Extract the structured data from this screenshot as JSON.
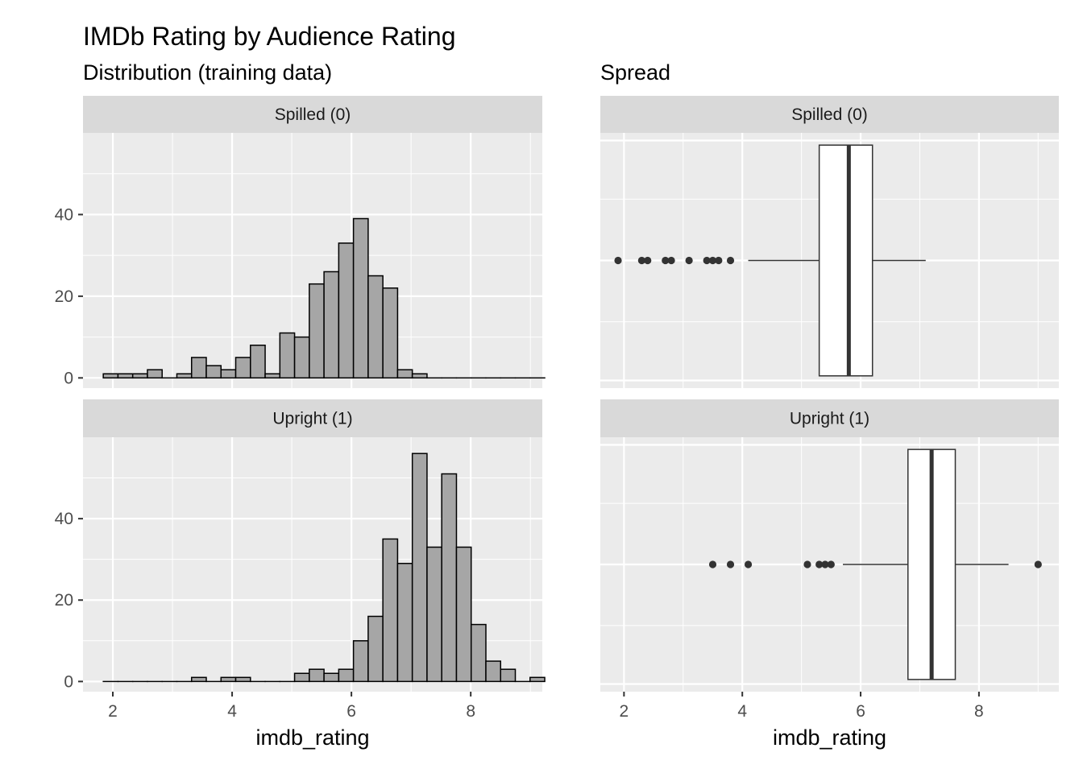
{
  "title": "IMDb Rating by Audience Rating",
  "chart_data": [
    {
      "type": "bar",
      "subtitle": "Distribution (training data)",
      "xlabel": "imdb_rating",
      "ylabel": "",
      "xlim": [
        1.5,
        9.2
      ],
      "ylim": [
        -2.5,
        60
      ],
      "x_ticks": [
        2,
        4,
        6,
        8
      ],
      "y_ticks": [
        0,
        20,
        40
      ],
      "bin_start": 1.84,
      "bin_width": 0.2467,
      "panels": [
        {
          "label": "Spilled (0)",
          "counts": [
            1,
            1,
            1,
            2,
            0,
            1,
            5,
            3,
            2,
            5,
            8,
            1,
            11,
            10,
            23,
            26,
            33,
            39,
            25,
            22,
            2,
            1,
            0,
            0,
            0,
            0,
            0,
            0,
            0,
            0
          ]
        },
        {
          "label": "Upright (1)",
          "counts": [
            0,
            0,
            0,
            0,
            0,
            0,
            1,
            0,
            1,
            1,
            0,
            0,
            0,
            2,
            3,
            2,
            3,
            10,
            16,
            35,
            29,
            56,
            33,
            51,
            33,
            14,
            5,
            3,
            0,
            1
          ]
        }
      ]
    },
    {
      "type": "boxplot",
      "subtitle": "Spread",
      "xlabel": "imdb_rating",
      "xlim": [
        1.6,
        9.35
      ],
      "x_ticks": [
        2,
        4,
        6,
        8
      ],
      "panels": [
        {
          "label": "Spilled (0)",
          "q1": 5.3,
          "median": 5.8,
          "q3": 6.2,
          "whisker_low": 4.1,
          "whisker_high": 7.1,
          "outliers": [
            1.9,
            2.3,
            2.4,
            2.7,
            2.8,
            3.1,
            3.4,
            3.5,
            3.6,
            3.8
          ]
        },
        {
          "label": "Upright (1)",
          "q1": 6.8,
          "median": 7.2,
          "q3": 7.6,
          "whisker_low": 5.7,
          "whisker_high": 8.5,
          "outliers": [
            3.5,
            3.8,
            4.1,
            5.1,
            5.3,
            5.4,
            5.5,
            9.0
          ]
        }
      ]
    }
  ],
  "colors": {
    "panel_bg": "#ebebeb",
    "strip_bg": "#d9d9d9",
    "grid_major": "#ffffff",
    "bar_fill": "#a6a6a6",
    "bar_stroke": "#000000",
    "box_fill": "#ffffff",
    "box_stroke": "#333333",
    "axis_tick": "#333333"
  }
}
